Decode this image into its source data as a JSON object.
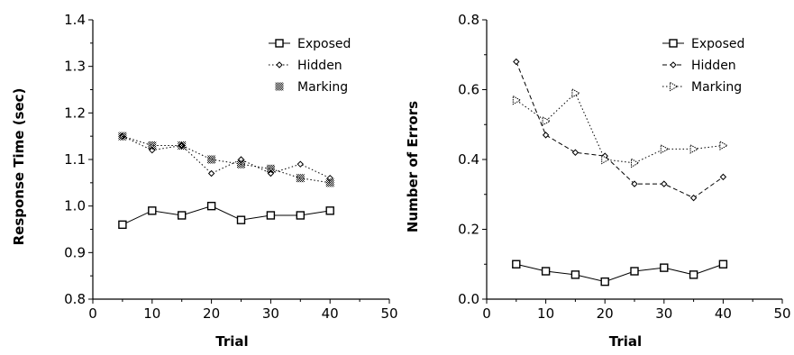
{
  "chart_data": [
    {
      "type": "line",
      "title": "",
      "xlabel": "Trial",
      "ylabel": "Response Time (sec)",
      "xlim": [
        0,
        50
      ],
      "ylim": [
        0.8,
        1.4
      ],
      "x_ticks": [
        "0",
        "10",
        "20",
        "30",
        "40",
        "50"
      ],
      "y_ticks": [
        "0.8",
        "0.9",
        "1.0",
        "1.1",
        "1.2",
        "1.3",
        "1.4"
      ],
      "grid": false,
      "legend_position": "top-right",
      "x": [
        5,
        10,
        15,
        20,
        25,
        30,
        35,
        40
      ],
      "series": [
        {
          "name": "Exposed",
          "marker": "square",
          "line": "solid",
          "values": [
            0.96,
            0.99,
            0.98,
            1.0,
            0.97,
            0.98,
            0.98,
            0.99
          ]
        },
        {
          "name": "Hidden",
          "marker": "diamond",
          "line": "dotted",
          "values": [
            1.15,
            1.12,
            1.13,
            1.07,
            1.1,
            1.07,
            1.09,
            1.06
          ]
        },
        {
          "name": "Marking",
          "marker": "hatched",
          "line": "dotted",
          "values": [
            1.15,
            1.13,
            1.13,
            1.1,
            1.09,
            1.08,
            1.06,
            1.05
          ]
        }
      ]
    },
    {
      "type": "line",
      "title": "",
      "xlabel": "Trial",
      "ylabel": "Number of Errors",
      "xlim": [
        0,
        50
      ],
      "ylim": [
        0.0,
        0.8
      ],
      "x_ticks": [
        "0",
        "10",
        "20",
        "30",
        "40",
        "50"
      ],
      "y_ticks": [
        "0.0",
        "0.2",
        "0.4",
        "0.6",
        "0.8"
      ],
      "grid": false,
      "legend_position": "top-right",
      "x": [
        5,
        10,
        15,
        20,
        25,
        30,
        35,
        40
      ],
      "series": [
        {
          "name": "Exposed",
          "marker": "square",
          "line": "solid",
          "values": [
            0.1,
            0.08,
            0.07,
            0.05,
            0.08,
            0.09,
            0.07,
            0.1
          ]
        },
        {
          "name": "Hidden",
          "marker": "diamond",
          "line": "dashed",
          "values": [
            0.68,
            0.47,
            0.42,
            0.41,
            0.33,
            0.33,
            0.29,
            0.35
          ]
        },
        {
          "name": "Marking",
          "marker": "triangle",
          "line": "dotted",
          "values": [
            0.57,
            0.51,
            0.59,
            0.4,
            0.39,
            0.43,
            0.43,
            0.44
          ]
        }
      ]
    }
  ]
}
